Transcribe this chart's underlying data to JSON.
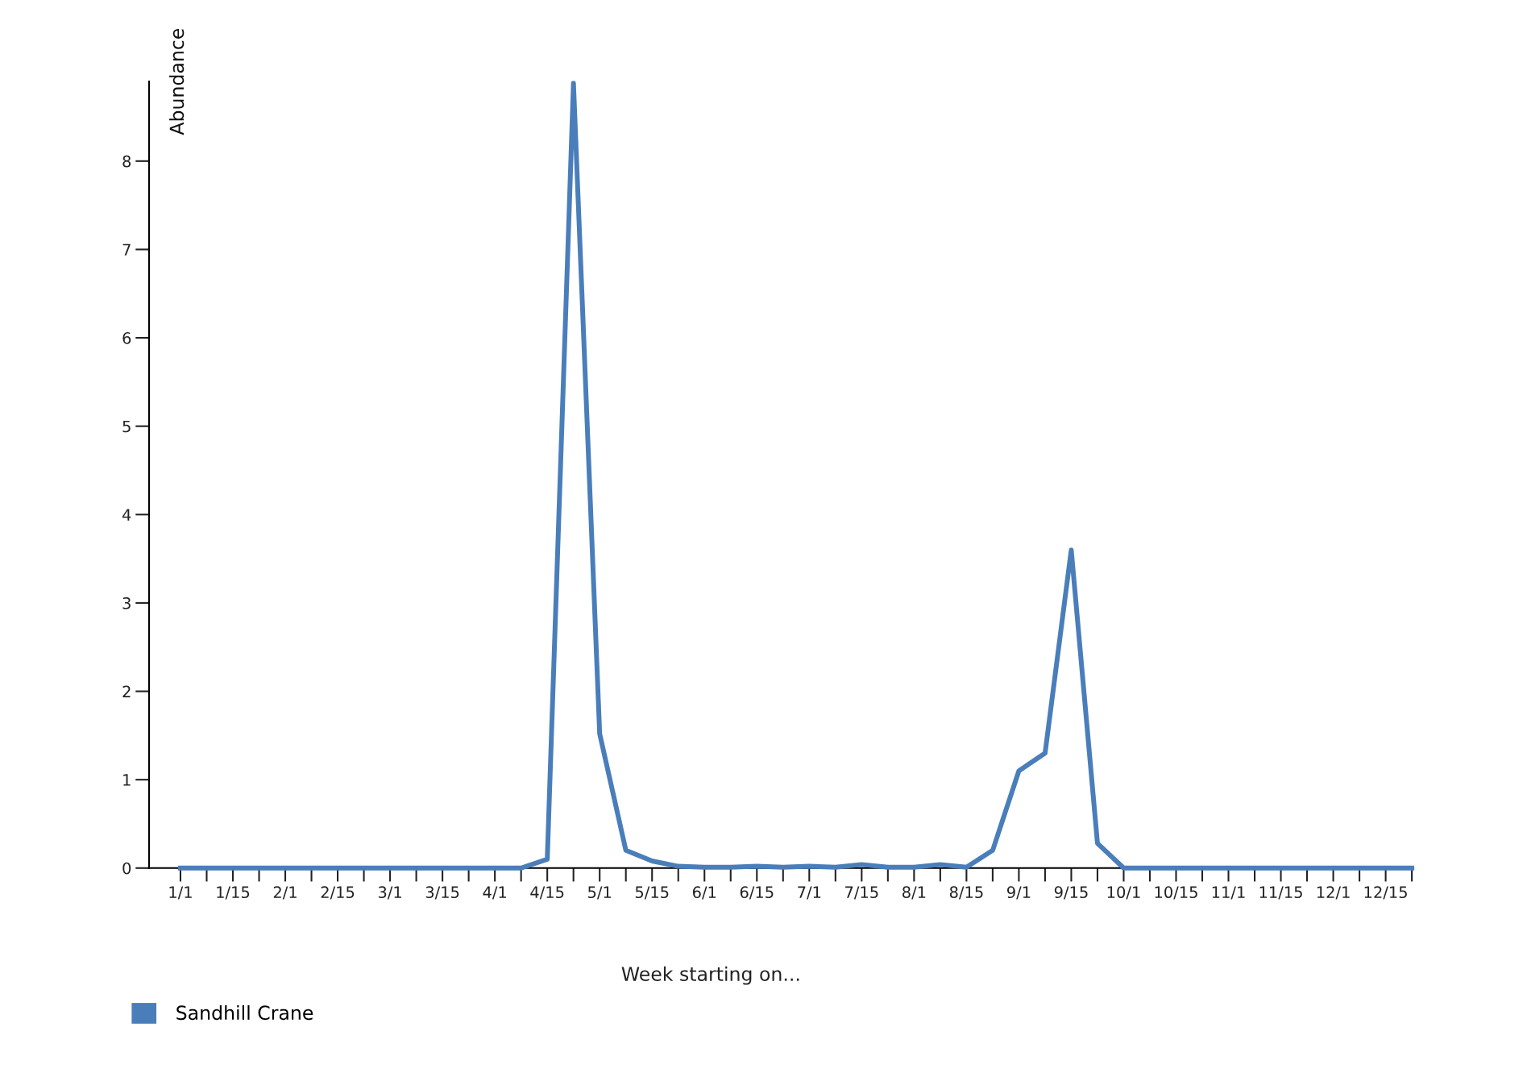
{
  "chart_data": {
    "type": "line",
    "xlabel": "Week starting on...",
    "ylabel": "Abundance",
    "categories": [
      "1/1",
      null,
      "1/15",
      null,
      "2/1",
      null,
      "2/15",
      null,
      "3/1",
      null,
      "3/15",
      null,
      "4/1",
      null,
      "4/15",
      null,
      "5/1",
      null,
      "5/15",
      null,
      "6/1",
      null,
      "6/15",
      null,
      "7/1",
      null,
      "7/15",
      null,
      "8/1",
      null,
      "8/15",
      null,
      "9/1",
      null,
      "9/15",
      null,
      "10/1",
      null,
      "10/15",
      null,
      "11/1",
      null,
      "11/15",
      null,
      "12/1",
      null,
      "12/15",
      null
    ],
    "series": [
      {
        "name": "Sandhill Crane",
        "color": "#4a7ebb",
        "values": [
          0,
          0,
          0,
          0,
          0,
          0,
          0,
          0,
          0,
          0,
          0,
          0,
          0,
          0,
          0.1,
          8.88,
          1.52,
          0.2,
          0.08,
          0.02,
          0.01,
          0.01,
          0.02,
          0.01,
          0.02,
          0.01,
          0.04,
          0.01,
          0.01,
          0.04,
          0.01,
          0.2,
          1.1,
          1.3,
          3.6,
          0.28,
          0,
          0,
          0,
          0,
          0,
          0,
          0,
          0,
          0,
          0,
          0,
          0
        ]
      }
    ],
    "ylim": [
      0,
      8.9
    ],
    "yticks": [
      0,
      1,
      2,
      3,
      4,
      5,
      6,
      7,
      8
    ],
    "grid": false,
    "legend": "bottom left",
    "line_style": "solid"
  }
}
